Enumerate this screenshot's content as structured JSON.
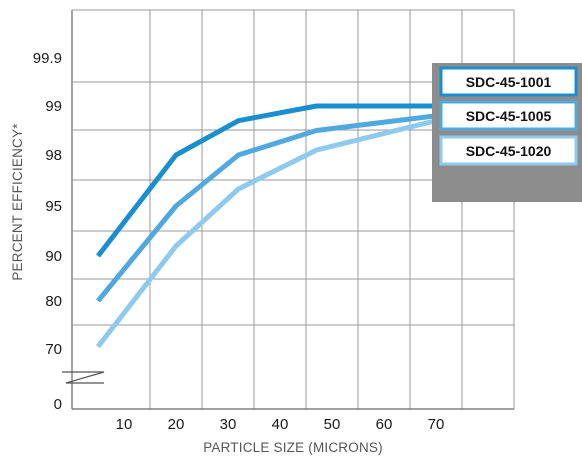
{
  "chart_data": {
    "type": "line",
    "xlabel": "PARTICLE SIZE (MICRONS)",
    "ylabel": "PERCENT EFFICIENCY*",
    "x_ticks": [
      "10",
      "20",
      "30",
      "40",
      "50",
      "60",
      "70"
    ],
    "y_ticks": [
      "0",
      "70",
      "80",
      "90",
      "95",
      "98",
      "99",
      "99.9"
    ],
    "y_scale": "categorical-ranks",
    "y_axis_break": "between 0 and 70",
    "xlim": [
      0,
      85
    ],
    "grid": true,
    "legend_position": "top-right",
    "series": [
      {
        "name": "SDC-45-1001",
        "color": "#1a8fd0",
        "x": [
          5,
          20,
          32,
          47,
          70
        ],
        "y": [
          90,
          98,
          98.7,
          99,
          99
        ]
      },
      {
        "name": "SDC-45-1005",
        "color": "#4fa9de",
        "x": [
          5,
          20,
          32,
          47,
          70
        ],
        "y": [
          80,
          95,
          98,
          98.5,
          98.8
        ]
      },
      {
        "name": "SDC-45-1020",
        "color": "#8ecaee",
        "x": [
          5,
          20,
          32,
          47,
          70
        ],
        "y": [
          70.5,
          91,
          96,
          98.1,
          98.7
        ]
      }
    ]
  }
}
